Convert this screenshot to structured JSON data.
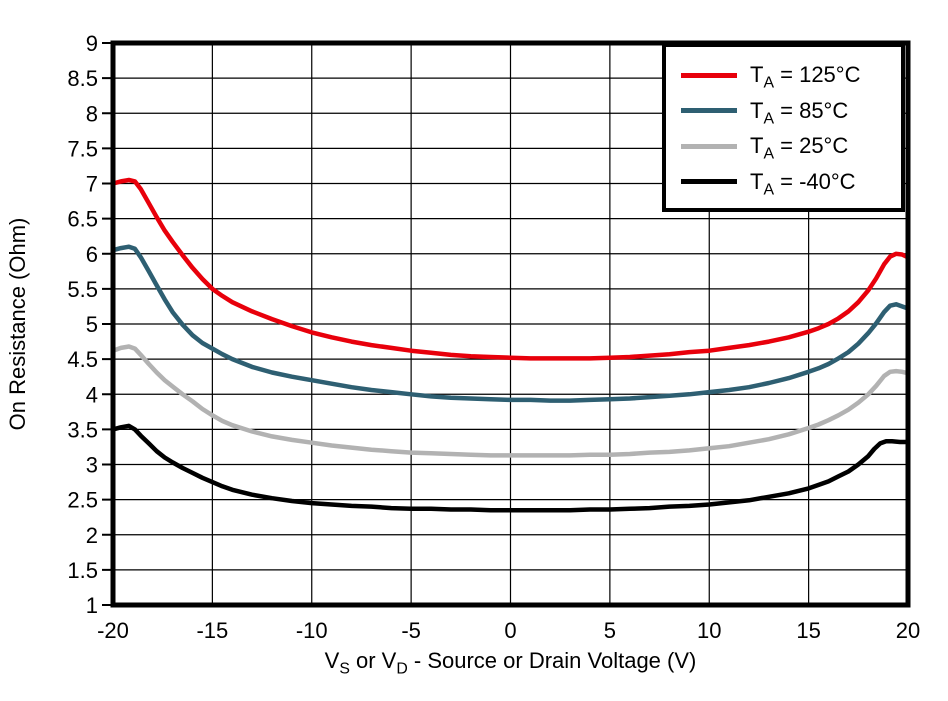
{
  "figure": {
    "y_axis_title": "On Resistance (Ohm)",
    "x_axis_title": {
      "seg1": "V",
      "sub1": "S",
      "seg2": " or V",
      "sub2": "D",
      "seg3": " - Source or Drain Voltage (V)"
    },
    "frame_color": "#000000",
    "background": "#ffffff"
  },
  "legend": {
    "position": "top-right",
    "items": [
      {
        "pre": "T",
        "sub": "A",
        "post": " = 125°C"
      },
      {
        "pre": "T",
        "sub": "A",
        "post": " = 85°C"
      },
      {
        "pre": "T",
        "sub": "A",
        "post": " = 25°C"
      },
      {
        "pre": "T",
        "sub": "A",
        "post": " = -40°C"
      }
    ]
  },
  "chart_data": {
    "type": "line",
    "title": "",
    "xlabel": "VS or VD - Source or Drain Voltage (V)",
    "ylabel": "On Resistance (Ohm)",
    "xlim": [
      -20,
      20
    ],
    "ylim": [
      1,
      9
    ],
    "grid": true,
    "grid_x_step": 5,
    "grid_y_step": 0.5,
    "x_ticks": [
      -20,
      -15,
      -10,
      -5,
      0,
      5,
      10,
      15,
      20
    ],
    "x_ticklabels": [
      "-20",
      "-15",
      "-10",
      "-5",
      "0",
      "5",
      "10",
      "15",
      "20"
    ],
    "y_ticks": [
      1,
      1.5,
      2,
      2.5,
      3,
      3.5,
      4,
      4.5,
      5,
      5.5,
      6,
      6.5,
      7,
      7.5,
      8,
      8.5,
      9
    ],
    "y_ticklabels": [
      "1",
      "1.5",
      "2",
      "2.5",
      "3",
      "3.5",
      "4",
      "4.5",
      "5",
      "5.5",
      "6",
      "6.5",
      "7",
      "7.5",
      "8",
      "8.5",
      "9"
    ],
    "legend_position": "top-right",
    "series": [
      {
        "name": "TA = 125°C",
        "color": "#e8000b",
        "points": [
          [
            -20,
            7.0
          ],
          [
            -19.6,
            7.03
          ],
          [
            -19.2,
            7.05
          ],
          [
            -18.9,
            7.03
          ],
          [
            -18.6,
            6.92
          ],
          [
            -18.2,
            6.72
          ],
          [
            -17.8,
            6.52
          ],
          [
            -17.4,
            6.33
          ],
          [
            -17,
            6.17
          ],
          [
            -16.5,
            5.98
          ],
          [
            -16,
            5.8
          ],
          [
            -15.5,
            5.64
          ],
          [
            -15,
            5.5
          ],
          [
            -14.5,
            5.4
          ],
          [
            -14,
            5.31
          ],
          [
            -13,
            5.18
          ],
          [
            -12,
            5.07
          ],
          [
            -11,
            4.97
          ],
          [
            -10,
            4.88
          ],
          [
            -9,
            4.81
          ],
          [
            -8,
            4.75
          ],
          [
            -7,
            4.7
          ],
          [
            -6,
            4.66
          ],
          [
            -5,
            4.62
          ],
          [
            -4,
            4.59
          ],
          [
            -3,
            4.56
          ],
          [
            -2,
            4.54
          ],
          [
            -1,
            4.53
          ],
          [
            0,
            4.52
          ],
          [
            1,
            4.51
          ],
          [
            2,
            4.51
          ],
          [
            3,
            4.51
          ],
          [
            4,
            4.51
          ],
          [
            5,
            4.52
          ],
          [
            6,
            4.53
          ],
          [
            7,
            4.55
          ],
          [
            8,
            4.57
          ],
          [
            9,
            4.6
          ],
          [
            10,
            4.62
          ],
          [
            11,
            4.66
          ],
          [
            12,
            4.7
          ],
          [
            13,
            4.75
          ],
          [
            14,
            4.81
          ],
          [
            15,
            4.89
          ],
          [
            15.5,
            4.94
          ],
          [
            16,
            5.0
          ],
          [
            16.5,
            5.08
          ],
          [
            17,
            5.18
          ],
          [
            17.5,
            5.31
          ],
          [
            18,
            5.48
          ],
          [
            18.4,
            5.65
          ],
          [
            18.8,
            5.85
          ],
          [
            19.1,
            5.96
          ],
          [
            19.4,
            6.0
          ],
          [
            19.7,
            5.99
          ],
          [
            20,
            5.95
          ]
        ]
      },
      {
        "name": "TA = 85°C",
        "color": "#2e5f72",
        "points": [
          [
            -20,
            6.05
          ],
          [
            -19.6,
            6.08
          ],
          [
            -19.2,
            6.1
          ],
          [
            -18.9,
            6.07
          ],
          [
            -18.6,
            5.95
          ],
          [
            -18.2,
            5.75
          ],
          [
            -17.8,
            5.55
          ],
          [
            -17.4,
            5.35
          ],
          [
            -17,
            5.17
          ],
          [
            -16.5,
            4.99
          ],
          [
            -16,
            4.84
          ],
          [
            -15.5,
            4.73
          ],
          [
            -15,
            4.65
          ],
          [
            -14.5,
            4.57
          ],
          [
            -14,
            4.5
          ],
          [
            -13,
            4.39
          ],
          [
            -12,
            4.31
          ],
          [
            -11,
            4.25
          ],
          [
            -10,
            4.2
          ],
          [
            -9,
            4.15
          ],
          [
            -8,
            4.1
          ],
          [
            -7,
            4.06
          ],
          [
            -6,
            4.03
          ],
          [
            -5,
            4.0
          ],
          [
            -4,
            3.97
          ],
          [
            -3,
            3.95
          ],
          [
            -2,
            3.94
          ],
          [
            -1,
            3.93
          ],
          [
            0,
            3.92
          ],
          [
            1,
            3.92
          ],
          [
            2,
            3.91
          ],
          [
            3,
            3.91
          ],
          [
            4,
            3.92
          ],
          [
            5,
            3.93
          ],
          [
            6,
            3.94
          ],
          [
            7,
            3.96
          ],
          [
            8,
            3.98
          ],
          [
            9,
            4.0
          ],
          [
            10,
            4.03
          ],
          [
            11,
            4.06
          ],
          [
            12,
            4.1
          ],
          [
            13,
            4.16
          ],
          [
            14,
            4.23
          ],
          [
            15,
            4.32
          ],
          [
            15.5,
            4.37
          ],
          [
            16,
            4.43
          ],
          [
            16.5,
            4.51
          ],
          [
            17,
            4.6
          ],
          [
            17.5,
            4.72
          ],
          [
            18,
            4.87
          ],
          [
            18.4,
            5.01
          ],
          [
            18.8,
            5.17
          ],
          [
            19.1,
            5.26
          ],
          [
            19.4,
            5.28
          ],
          [
            19.7,
            5.25
          ],
          [
            20,
            5.22
          ]
        ]
      },
      {
        "name": "TA = 25°C",
        "color": "#b2b2b2",
        "points": [
          [
            -20,
            4.62
          ],
          [
            -19.6,
            4.66
          ],
          [
            -19.2,
            4.68
          ],
          [
            -18.9,
            4.65
          ],
          [
            -18.6,
            4.56
          ],
          [
            -18.2,
            4.43
          ],
          [
            -17.8,
            4.31
          ],
          [
            -17.4,
            4.2
          ],
          [
            -17,
            4.11
          ],
          [
            -16.5,
            4.0
          ],
          [
            -16,
            3.9
          ],
          [
            -15.5,
            3.79
          ],
          [
            -15,
            3.7
          ],
          [
            -14.5,
            3.62
          ],
          [
            -14,
            3.56
          ],
          [
            -13,
            3.47
          ],
          [
            -12,
            3.4
          ],
          [
            -11,
            3.35
          ],
          [
            -10,
            3.31
          ],
          [
            -9,
            3.27
          ],
          [
            -8,
            3.24
          ],
          [
            -7,
            3.21
          ],
          [
            -6,
            3.19
          ],
          [
            -5,
            3.17
          ],
          [
            -4,
            3.16
          ],
          [
            -3,
            3.15
          ],
          [
            -2,
            3.14
          ],
          [
            -1,
            3.13
          ],
          [
            0,
            3.13
          ],
          [
            1,
            3.13
          ],
          [
            2,
            3.13
          ],
          [
            3,
            3.13
          ],
          [
            4,
            3.14
          ],
          [
            5,
            3.14
          ],
          [
            6,
            3.15
          ],
          [
            7,
            3.17
          ],
          [
            8,
            3.18
          ],
          [
            9,
            3.2
          ],
          [
            10,
            3.23
          ],
          [
            11,
            3.26
          ],
          [
            12,
            3.31
          ],
          [
            13,
            3.36
          ],
          [
            14,
            3.43
          ],
          [
            15,
            3.52
          ],
          [
            15.5,
            3.57
          ],
          [
            16,
            3.63
          ],
          [
            16.5,
            3.7
          ],
          [
            17,
            3.78
          ],
          [
            17.5,
            3.88
          ],
          [
            18,
            4.0
          ],
          [
            18.4,
            4.12
          ],
          [
            18.8,
            4.26
          ],
          [
            19.1,
            4.32
          ],
          [
            19.4,
            4.33
          ],
          [
            19.7,
            4.32
          ],
          [
            20,
            4.3
          ]
        ]
      },
      {
        "name": "TA = -40°C",
        "color": "#000000",
        "points": [
          [
            -20,
            3.5
          ],
          [
            -19.6,
            3.53
          ],
          [
            -19.2,
            3.55
          ],
          [
            -18.9,
            3.5
          ],
          [
            -18.6,
            3.41
          ],
          [
            -18.2,
            3.3
          ],
          [
            -17.8,
            3.19
          ],
          [
            -17.4,
            3.1
          ],
          [
            -17,
            3.03
          ],
          [
            -16.5,
            2.95
          ],
          [
            -16,
            2.88
          ],
          [
            -15.5,
            2.81
          ],
          [
            -15,
            2.75
          ],
          [
            -14.5,
            2.69
          ],
          [
            -14,
            2.64
          ],
          [
            -13,
            2.57
          ],
          [
            -12,
            2.52
          ],
          [
            -11,
            2.48
          ],
          [
            -10,
            2.45
          ],
          [
            -9,
            2.43
          ],
          [
            -8,
            2.41
          ],
          [
            -7,
            2.4
          ],
          [
            -6,
            2.38
          ],
          [
            -5,
            2.37
          ],
          [
            -4,
            2.37
          ],
          [
            -3,
            2.36
          ],
          [
            -2,
            2.36
          ],
          [
            -1,
            2.35
          ],
          [
            0,
            2.35
          ],
          [
            1,
            2.35
          ],
          [
            2,
            2.35
          ],
          [
            3,
            2.35
          ],
          [
            4,
            2.36
          ],
          [
            5,
            2.36
          ],
          [
            6,
            2.37
          ],
          [
            7,
            2.38
          ],
          [
            8,
            2.4
          ],
          [
            9,
            2.41
          ],
          [
            10,
            2.43
          ],
          [
            11,
            2.46
          ],
          [
            12,
            2.49
          ],
          [
            13,
            2.54
          ],
          [
            14,
            2.59
          ],
          [
            15,
            2.66
          ],
          [
            15.5,
            2.71
          ],
          [
            16,
            2.76
          ],
          [
            16.5,
            2.83
          ],
          [
            17,
            2.9
          ],
          [
            17.5,
            3.0
          ],
          [
            18,
            3.12
          ],
          [
            18.3,
            3.22
          ],
          [
            18.6,
            3.3
          ],
          [
            18.9,
            3.33
          ],
          [
            19.2,
            3.33
          ],
          [
            19.6,
            3.32
          ],
          [
            20,
            3.32
          ]
        ]
      }
    ]
  }
}
